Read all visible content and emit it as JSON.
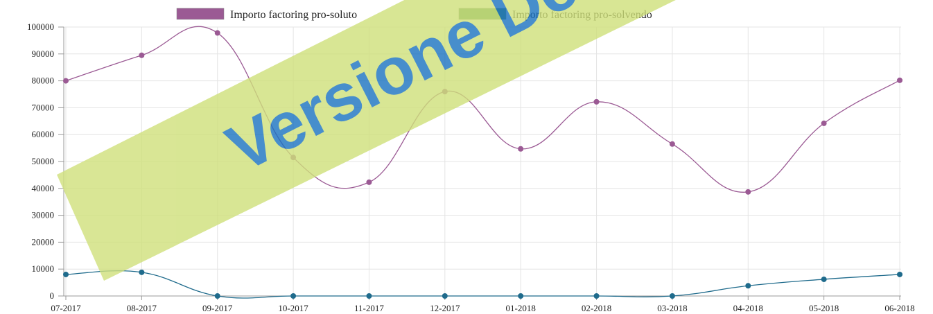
{
  "chart_data": {
    "type": "line",
    "categories": [
      "07-2017",
      "08-2017",
      "09-2017",
      "10-2017",
      "11-2017",
      "12-2017",
      "01-2018",
      "02-2018",
      "03-2018",
      "04-2018",
      "05-2018",
      "06-2018"
    ],
    "series": [
      {
        "name": "Importo factoring pro-soluto",
        "color": "#9b5a94",
        "legend_color": "#9b5a94",
        "values": [
          80000,
          89500,
          97800,
          51500,
          42300,
          76000,
          54700,
          72200,
          56500,
          38700,
          64200,
          80200
        ]
      },
      {
        "name": "Importo factoring pro-solvendo",
        "color": "#1f6b8c",
        "legend_color": "#5a9a5f",
        "values": [
          8000,
          8800,
          0,
          0,
          0,
          0,
          0,
          0,
          0,
          3800,
          6200,
          8000
        ]
      }
    ],
    "ylim": [
      0,
      100000
    ],
    "yticks": [
      0,
      10000,
      20000,
      30000,
      40000,
      50000,
      60000,
      70000,
      80000,
      90000,
      100000
    ],
    "grid": true,
    "watermark": "Versione Demo"
  }
}
